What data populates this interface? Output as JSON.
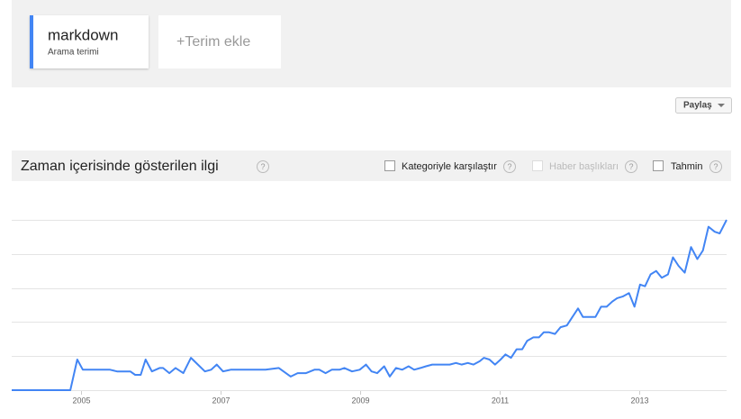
{
  "search_term_caption": "Arama terimi",
  "add_term": "+Terim ekle",
  "share_button": "Paylaş",
  "help_icon": "?",
  "options": [
    "Kategoriyle karşılaştır",
    "Haber başlıkları",
    "Tahmin"
  ],
  "chart_data": {
    "type": "line",
    "title": "Zaman içerisinde gösterilen ilgi",
    "x": [
      2004.0,
      2004.84,
      2004.94,
      2005.02,
      2005.12,
      2005.41,
      2005.51,
      2005.7,
      2005.77,
      2005.85,
      2005.92,
      2006.01,
      2006.12,
      2006.17,
      2006.26,
      2006.35,
      2006.46,
      2006.57,
      2006.67,
      2006.77,
      2006.86,
      2006.94,
      2007.03,
      2007.14,
      2007.24,
      2007.64,
      2007.83,
      2008.0,
      2008.1,
      2008.22,
      2008.34,
      2008.41,
      2008.5,
      2008.59,
      2008.7,
      2008.77,
      2008.88,
      2008.99,
      2009.08,
      2009.16,
      2009.24,
      2009.34,
      2009.42,
      2009.51,
      2009.6,
      2009.69,
      2009.77,
      2009.86,
      2009.94,
      2010.03,
      2010.1,
      2010.19,
      2010.28,
      2010.37,
      2010.45,
      2010.54,
      2010.62,
      2010.71,
      2010.77,
      2010.85,
      2010.93,
      2011.01,
      2011.08,
      2011.16,
      2011.24,
      2011.32,
      2011.39,
      2011.48,
      2011.56,
      2011.63,
      2011.7,
      2011.79,
      2011.87,
      2011.96,
      2012.04,
      2012.12,
      2012.19,
      2012.28,
      2012.37,
      2012.45,
      2012.53,
      2012.61,
      2012.68,
      2012.76,
      2012.85,
      2012.93,
      2013.01,
      2013.08,
      2013.16,
      2013.24,
      2013.32,
      2013.41,
      2013.48,
      2013.56,
      2013.65,
      2013.74,
      2013.83,
      2013.91,
      2013.99,
      2014.08,
      2014.15,
      2014.25
    ],
    "series": [
      {
        "name": "markdown",
        "color": "#4285f4",
        "values": [
          0,
          0,
          18,
          12,
          12,
          12,
          11,
          11,
          9,
          9,
          18,
          11,
          13,
          13,
          10,
          13,
          10,
          19,
          15,
          11,
          12,
          15,
          11,
          12,
          12,
          12,
          13,
          8,
          10,
          10,
          12,
          12,
          10,
          12,
          12,
          13,
          11,
          12,
          15,
          11,
          10,
          14,
          8,
          13,
          12,
          14,
          12,
          13,
          14,
          15,
          15,
          15,
          15,
          16,
          15,
          16,
          15,
          17,
          19,
          18,
          15,
          18,
          21,
          19,
          24,
          24,
          29,
          31,
          31,
          34,
          34,
          33,
          37,
          38,
          43,
          48,
          43,
          43,
          43,
          49,
          49,
          52,
          54,
          55,
          57,
          49,
          62,
          61,
          68,
          70,
          66,
          68,
          78,
          73,
          69,
          84,
          77,
          82,
          96,
          93,
          92,
          100
        ]
      }
    ],
    "xlim": [
      2004,
      2014.25
    ],
    "xticks": [
      2005,
      2007,
      2009,
      2011,
      2013
    ],
    "ylim": [
      0,
      100
    ],
    "yticks": [
      0,
      20,
      40,
      60,
      80,
      100
    ],
    "grid": true
  }
}
